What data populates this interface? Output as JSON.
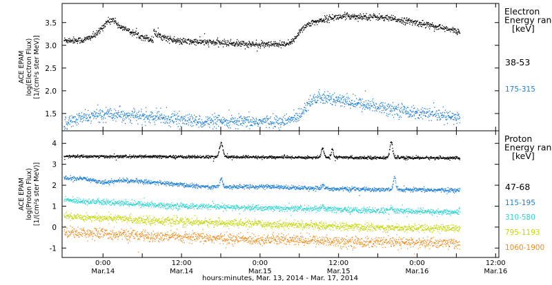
{
  "chart_data": [
    {
      "type": "scatter",
      "ylabel_lines": [
        "ACE EPAM",
        "log(Electron Flux)",
        "[1/(cm²s ster MeV)]"
      ],
      "yticks": [
        1.5,
        2.0,
        2.5,
        3.0,
        3.5
      ],
      "ytick_labels": [
        "1.5",
        "2.0",
        "2.5",
        "3.0",
        "3.5"
      ],
      "ylim": [
        1.12,
        3.92
      ],
      "legend_title_lines": [
        "Electron",
        "Energy ran",
        "[keV]"
      ],
      "series": [
        {
          "name": "38-53",
          "color": "#000000",
          "noise": 0.035,
          "keypoints": [
            [
              -12,
              3.12
            ],
            [
              -6,
              3.12
            ],
            [
              -2,
              3.25
            ],
            [
              1,
              3.52
            ],
            [
              3,
              3.58
            ],
            [
              5,
              3.42
            ],
            [
              10,
              3.25
            ],
            [
              14,
              3.15
            ],
            [
              15.2,
              3.12
            ],
            [
              15.4,
              3.35
            ],
            [
              16,
              3.25
            ],
            [
              22,
              3.1
            ],
            [
              30,
              3.08
            ],
            [
              40,
              3.05
            ],
            [
              48,
              3.02
            ],
            [
              56,
              3.02
            ],
            [
              58,
              3.1
            ],
            [
              60,
              3.32
            ],
            [
              62,
              3.45
            ],
            [
              66,
              3.55
            ],
            [
              70,
              3.62
            ],
            [
              76,
              3.65
            ],
            [
              84,
              3.63
            ],
            [
              92,
              3.55
            ],
            [
              100,
              3.45
            ],
            [
              104,
              3.38
            ],
            [
              109,
              3.3
            ]
          ],
          "spikes": []
        },
        {
          "name": "175-315",
          "color": "#1e7fd8",
          "noise": 0.07,
          "keypoints": [
            [
              -12,
              1.3
            ],
            [
              -6,
              1.42
            ],
            [
              2,
              1.52
            ],
            [
              10,
              1.45
            ],
            [
              20,
              1.4
            ],
            [
              30,
              1.33
            ],
            [
              40,
              1.32
            ],
            [
              50,
              1.33
            ],
            [
              56,
              1.33
            ],
            [
              60,
              1.48
            ],
            [
              63,
              1.78
            ],
            [
              66,
              1.85
            ],
            [
              72,
              1.8
            ],
            [
              80,
              1.7
            ],
            [
              88,
              1.62
            ],
            [
              96,
              1.52
            ],
            [
              104,
              1.45
            ],
            [
              109,
              1.4
            ]
          ],
          "spikes": []
        }
      ]
    },
    {
      "type": "scatter",
      "ylabel_lines": [
        "ACE EPAM",
        "log(Proton Flux)",
        "[1/(cm²s ster MeV)]"
      ],
      "yticks": [
        -1,
        0,
        1,
        2,
        3,
        4
      ],
      "ytick_labels": [
        "-1",
        "0",
        "1",
        "2",
        "3",
        "4"
      ],
      "ylim": [
        -1.45,
        4.6
      ],
      "legend_title_lines": [
        "Proton",
        "Energy ran",
        "[keV]"
      ],
      "series": [
        {
          "name": "47-68",
          "color": "#000000",
          "noise": 0.035,
          "keypoints": [
            [
              -12,
              3.4
            ],
            [
              20,
              3.38
            ],
            [
              60,
              3.35
            ],
            [
              109,
              3.32
            ]
          ],
          "spikes": [
            [
              36,
              4.1,
              1.0
            ],
            [
              67,
              3.85,
              0.8
            ],
            [
              70,
              3.8,
              0.6
            ],
            [
              88,
              4.2,
              0.8
            ]
          ]
        },
        {
          "name": "115-195",
          "color": "#1e7fd8",
          "noise": 0.05,
          "keypoints": [
            [
              -12,
              2.35
            ],
            [
              -4,
              2.3
            ],
            [
              0,
              2.15
            ],
            [
              6,
              2.25
            ],
            [
              16,
              2.15
            ],
            [
              30,
              1.95
            ],
            [
              50,
              1.95
            ],
            [
              70,
              1.85
            ],
            [
              90,
              1.8
            ],
            [
              109,
              1.78
            ]
          ],
          "spikes": [
            [
              36,
              2.35,
              0.8
            ],
            [
              67,
              2.0,
              0.8
            ],
            [
              89,
              2.45,
              0.7
            ]
          ]
        },
        {
          "name": "310-580",
          "color": "#2ad4d0",
          "noise": 0.07,
          "keypoints": [
            [
              -12,
              1.32
            ],
            [
              0,
              1.2
            ],
            [
              20,
              1.05
            ],
            [
              40,
              0.95
            ],
            [
              60,
              0.9
            ],
            [
              80,
              0.82
            ],
            [
              109,
              0.72
            ]
          ],
          "spikes": [
            [
              67,
              1.05,
              0.6
            ],
            [
              88,
              1.0,
              0.6
            ]
          ]
        },
        {
          "name": "795-1193",
          "color": "#c2d600",
          "noise": 0.09,
          "keypoints": [
            [
              -12,
              0.55
            ],
            [
              0,
              0.45
            ],
            [
              20,
              0.3
            ],
            [
              40,
              0.2
            ],
            [
              60,
              0.12
            ],
            [
              80,
              0.0
            ],
            [
              109,
              -0.05
            ]
          ],
          "spikes": []
        },
        {
          "name": "1060-1900",
          "color": "#ee8c1c",
          "noise": 0.13,
          "keypoints": [
            [
              -12,
              -0.2
            ],
            [
              0,
              -0.3
            ],
            [
              20,
              -0.45
            ],
            [
              40,
              -0.55
            ],
            [
              60,
              -0.6
            ],
            [
              80,
              -0.7
            ],
            [
              109,
              -0.75
            ]
          ],
          "spikes": []
        }
      ]
    }
  ],
  "x_axis": {
    "xlim": [
      -12.5,
      121
    ],
    "ticks": [
      0,
      12,
      24,
      36,
      48,
      60,
      72,
      84,
      96,
      108,
      120
    ],
    "major_labels": [
      {
        "x": 0,
        "time": "0:00",
        "date": "Mar.14"
      },
      {
        "x": 24,
        "time": "12:00",
        "date": "Mar.14"
      },
      {
        "x": 48,
        "time": "0:00",
        "date": "Mar.15"
      },
      {
        "x": 72,
        "time": "12:00",
        "date": "Mar.15"
      },
      {
        "x": 96,
        "time": "0:00",
        "date": "Mar.16"
      },
      {
        "x": 120,
        "time": "12:00",
        "date": "Mar.16"
      }
    ],
    "xlabel": "hours:minutes, Mar. 13, 2014 - Mar. 17, 2014"
  }
}
